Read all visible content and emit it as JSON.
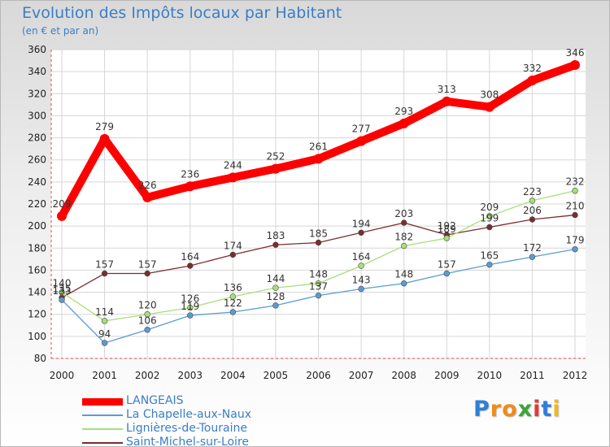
{
  "header": {
    "title": "Evolution des Impôts locaux par Habitant",
    "subtitle": "(en € et par an)"
  },
  "chart_data": {
    "type": "line",
    "title": "Evolution des Impôts locaux par Habitant",
    "subtitle": "(en € et par an)",
    "xlabel": "",
    "ylabel": "",
    "x": [
      "2000",
      "2001",
      "2002",
      "2003",
      "2004",
      "2005",
      "2006",
      "2007",
      "2008",
      "2009",
      "2010",
      "2011",
      "2012"
    ],
    "ylim": [
      80,
      360
    ],
    "yticks": [
      80,
      100,
      120,
      140,
      160,
      180,
      200,
      220,
      240,
      260,
      280,
      300,
      320,
      340,
      360
    ],
    "grid": true,
    "legend_position": "bottom-left",
    "series": [
      {
        "name": "LANGEAIS",
        "color": "#ff0000",
        "values": [
          209,
          279,
          226,
          236,
          244,
          252,
          261,
          277,
          293,
          313,
          308,
          332,
          346
        ]
      },
      {
        "name": "La Chapelle-aux-Naux",
        "color": "#5b9bd5",
        "values": [
          133,
          94,
          106,
          119,
          122,
          128,
          137,
          143,
          148,
          157,
          165,
          172,
          179
        ]
      },
      {
        "name": "Lignières-de-Touraine",
        "color": "#a6e07a",
        "values": [
          140,
          114,
          120,
          126,
          136,
          144,
          148,
          164,
          182,
          189,
          209,
          223,
          232
        ]
      },
      {
        "name": "Saint-Michel-sur-Loire",
        "color": "#7b2d2d",
        "values": [
          135,
          157,
          157,
          164,
          174,
          183,
          185,
          194,
          203,
          192,
          199,
          206,
          210
        ]
      }
    ]
  },
  "logo": {
    "text": "Proxiti",
    "letters": [
      "P",
      "r",
      "o",
      "x",
      "i",
      "t",
      "i"
    ],
    "colors": [
      "#2f7fd6",
      "#f08a1c",
      "#f08a1c",
      "#3aa53a",
      "#e03a3a",
      "#2f7fd6",
      "#f0b81c"
    ]
  }
}
